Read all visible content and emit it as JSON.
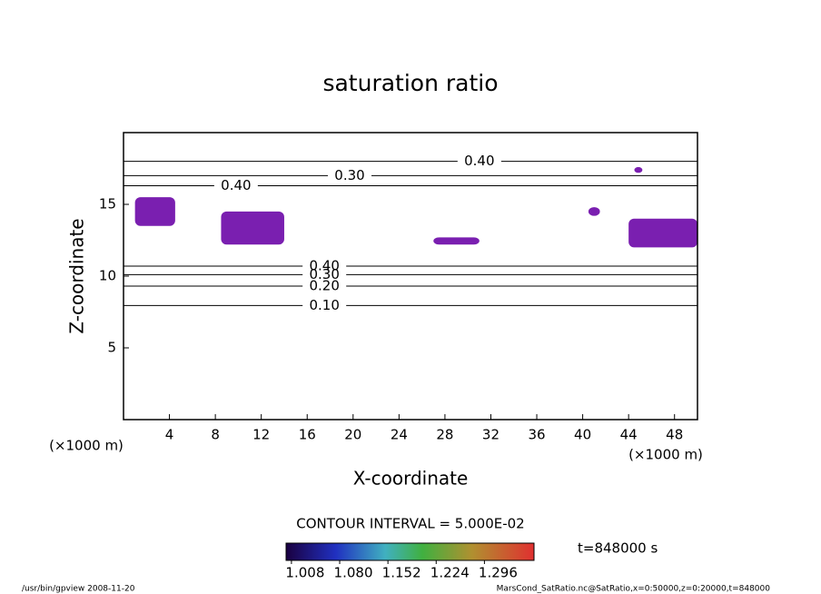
{
  "chart_data": {
    "type": "contour",
    "title": "saturation ratio",
    "x_label": "X-coordinate",
    "y_label": "Z-coordinate",
    "x_unit": "(×1000 m)",
    "y_unit": "(×1000 m)",
    "xlim": [
      0,
      50
    ],
    "xticks": [
      4,
      8,
      12,
      16,
      20,
      24,
      28,
      32,
      36,
      40,
      44,
      48
    ],
    "ylim": [
      0,
      20
    ],
    "yticks": [
      5,
      10,
      15
    ],
    "contours": {
      "color": "#000000",
      "levels": [
        0.1,
        0.2,
        0.3,
        0.4,
        0.4,
        0.3,
        0.4
      ],
      "value_labels": [
        "0.10",
        "0.20",
        "0.30",
        "0.40",
        "0.40",
        "0.30",
        "0.40"
      ],
      "z": [
        7.95,
        9.3,
        10.1,
        10.7,
        16.3,
        17.0,
        18.0
      ],
      "label_x": [
        17.5,
        17.5,
        17.5,
        17.5,
        9.8,
        19.7,
        31
      ]
    },
    "regions": {
      "color": "#7a1fb0",
      "x": [
        [
          1,
          4.5
        ],
        [
          8.5,
          14
        ],
        [
          44,
          50
        ],
        [
          27,
          31
        ],
        [
          40.5,
          41.5
        ],
        [
          44.5,
          45.2
        ]
      ],
      "z": [
        [
          13.5,
          15.5
        ],
        [
          12.2,
          14.5
        ],
        [
          12,
          14
        ],
        [
          12.2,
          12.7
        ],
        [
          14.2,
          14.8
        ],
        [
          17.2,
          17.6
        ]
      ]
    },
    "contour_interval": "CONTOUR INTERVAL = 5.000E-02",
    "colorbar": {
      "clim": [
        1.0,
        1.37
      ],
      "ticks": [
        1.008,
        1.08,
        1.152,
        1.224,
        1.296
      ],
      "tick_labels": [
        "1.008",
        "1.080",
        "1.152",
        "1.224",
        "1.296"
      ]
    },
    "time_label": "t=848000 s",
    "footer_left": "/usr/bin/gpview  2008-11-20",
    "footer_right": "MarsCond_SatRatio.nc@SatRatio,x=0:50000,z=0:20000,t=848000"
  }
}
